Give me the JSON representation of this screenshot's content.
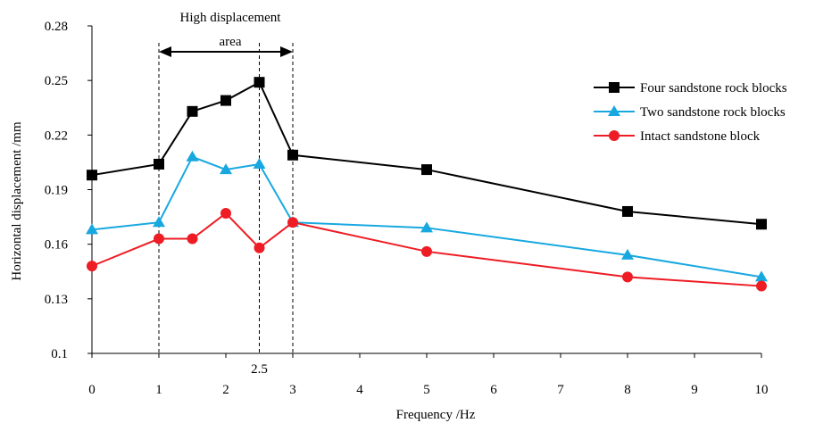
{
  "chart_data": {
    "type": "line",
    "title": "",
    "xlabel": "Frequency /Hz",
    "ylabel": "Horizontal displacement /mm",
    "xlim": [
      0,
      10
    ],
    "ylim": [
      0.1,
      0.28
    ],
    "x_ticks": [
      0,
      1,
      2,
      3,
      4,
      5,
      6,
      7,
      8,
      9,
      10
    ],
    "y_ticks": [
      0.1,
      0.13,
      0.16,
      0.19,
      0.22,
      0.25,
      0.28
    ],
    "y_tick_labels": [
      "0.1",
      "0.13",
      "0.16",
      "0.19",
      "0.22",
      "0.25",
      "0.28"
    ],
    "x_tick_labels": [
      "0",
      "1",
      "2",
      "3",
      "4",
      "5",
      "6",
      "7",
      "8",
      "9",
      "10"
    ],
    "grid": false,
    "legend_position": "right",
    "x": [
      0,
      1,
      1.5,
      2,
      2.5,
      3,
      5,
      8,
      10
    ],
    "series": [
      {
        "name": "Four sandstone rock blocks",
        "color": "#000000",
        "marker": "square",
        "values": [
          0.198,
          0.204,
          0.233,
          0.239,
          0.249,
          0.209,
          0.201,
          0.178,
          0.171
        ]
      },
      {
        "name": "Two sandstone rock blocks",
        "color": "#18a8e0",
        "marker": "triangle",
        "values": [
          0.168,
          0.172,
          0.208,
          0.201,
          0.204,
          0.172,
          0.169,
          0.154,
          0.142
        ]
      },
      {
        "name": "Intact sandstone block",
        "color": "#ee1c24",
        "marker": "circle",
        "values": [
          0.148,
          0.163,
          0.163,
          0.177,
          0.158,
          0.172,
          0.156,
          0.142,
          0.137
        ]
      }
    ],
    "annotations": {
      "region_label_line1": "High displacement",
      "region_label_line2": "area",
      "region_start": 1,
      "region_end": 3,
      "marker_line_x": 2.5,
      "marker_label": "2.5"
    }
  }
}
